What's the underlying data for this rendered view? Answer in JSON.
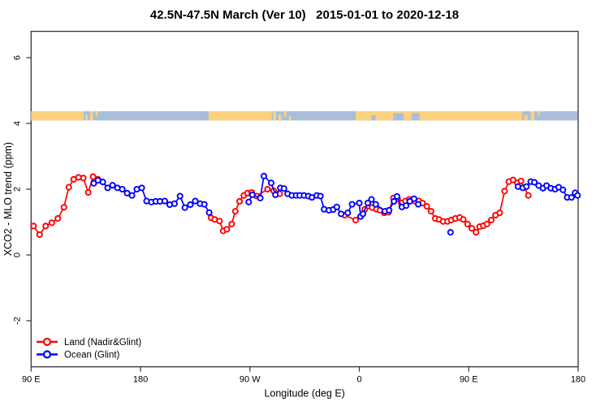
{
  "title": "42.5N-47.5N March (Ver 10)   2015-01-01 to 2020-12-18",
  "chart_data": {
    "type": "line",
    "title": "42.5N-47.5N March (Ver 10)   2015-01-01 to 2020-12-18",
    "xlabel": "Longitude (deg E)",
    "ylabel": "XCO2 - MLO trend (ppm)",
    "x_axis_note": "x is longitude in degrees east of 90E, wrapping 90E->180->90W->0->90E->180",
    "xlim": [
      0,
      450
    ],
    "ylim": [
      -3.4,
      6.8
    ],
    "grid": false,
    "x_ticks": [
      {
        "x": 0,
        "label": "90 E"
      },
      {
        "x": 90,
        "label": "180"
      },
      {
        "x": 180,
        "label": "90 W"
      },
      {
        "x": 270,
        "label": "0"
      },
      {
        "x": 360,
        "label": "90 E"
      },
      {
        "x": 450,
        "label": "180"
      }
    ],
    "y_ticks": [
      {
        "value": -2,
        "label": "-2"
      },
      {
        "value": 0,
        "label": "0"
      },
      {
        "value": 2,
        "label": "2"
      },
      {
        "value": 4,
        "label": "4"
      },
      {
        "value": 6,
        "label": "6"
      }
    ],
    "legend": {
      "position": "bottom-left",
      "entries": [
        {
          "label": "Land (Nadir&Glint)",
          "color": "#ff0000"
        },
        {
          "label": "Ocean (Glint)",
          "color": "#0000ff"
        }
      ]
    },
    "map_strip": {
      "description": "coastline band for 42.5N-47.5N drawn across the top of the plot",
      "y_top_value": 4.37,
      "y_bottom_value": 4.09,
      "ocean_color": "#a8bedb",
      "land_color": "#fbd27f",
      "extent": [
        0,
        449.5
      ],
      "land_segments": [
        [
          0,
          43.2
        ],
        [
          146,
          198
        ],
        [
          267,
          404
        ]
      ],
      "island_specks": [
        {
          "x": [
            44.5,
            46.5
          ],
          "h": 0.6,
          "anchor": "bottom"
        },
        {
          "x": [
            48.5,
            51.0
          ],
          "h": 1.0,
          "anchor": "top"
        },
        {
          "x": [
            53.0,
            55.0
          ],
          "h": 0.5,
          "anchor": "top"
        },
        {
          "x": [
            199.0,
            201.5
          ],
          "h": 1.0,
          "anchor": "top"
        },
        {
          "x": [
            203.5,
            206.0
          ],
          "h": 0.6,
          "anchor": "bottom"
        },
        {
          "x": [
            208.0,
            210.0
          ],
          "h": 0.6,
          "anchor": "top"
        },
        {
          "x": [
            212.0,
            214.0
          ],
          "h": 0.5,
          "anchor": "bottom"
        },
        {
          "x": [
            405.5,
            408.5
          ],
          "h": 0.6,
          "anchor": "bottom"
        },
        {
          "x": [
            411.0,
            414.0
          ],
          "h": 1.0,
          "anchor": "top"
        },
        {
          "x": [
            416.5,
            418.5
          ],
          "h": 0.4,
          "anchor": "top"
        }
      ],
      "ocean_patches": [
        {
          "x": [
            280.0,
            283.5
          ],
          "h": 0.55,
          "anchor": "bottom"
        },
        {
          "x": [
            298.0,
            306.5
          ],
          "h": 0.8,
          "anchor": "bottom"
        },
        {
          "x": [
            313.0,
            319.5
          ],
          "h": 0.8,
          "anchor": "bottom"
        }
      ]
    },
    "series": [
      {
        "name": "Land (Nadir&Glint)",
        "color": "#ff0000",
        "points": [
          [
            2,
            0.88
          ],
          [
            7,
            0.62
          ],
          [
            12,
            0.88
          ],
          [
            17,
            0.98
          ],
          [
            22,
            1.11
          ],
          [
            27,
            1.45
          ],
          [
            31,
            2.06
          ],
          [
            35,
            2.3
          ],
          [
            39,
            2.36
          ],
          [
            43,
            2.34
          ],
          [
            47,
            1.9
          ],
          [
            51,
            2.38
          ],
          [
            55,
            2.3
          ],
          [
            148,
            1.13
          ],
          [
            151,
            1.08
          ],
          [
            155,
            1.03
          ],
          [
            158,
            0.73
          ],
          [
            161,
            0.78
          ],
          [
            165,
            0.94
          ],
          [
            168,
            1.33
          ],
          [
            171.5,
            1.63
          ],
          [
            175,
            1.81
          ],
          [
            178,
            1.88
          ],
          [
            181.5,
            1.9
          ],
          [
            185.5,
            1.79
          ],
          [
            194.5,
            2.0
          ],
          [
            199.5,
            1.95
          ],
          [
            204.5,
            1.86
          ],
          [
            258,
            1.21
          ],
          [
            267,
            1.06
          ],
          [
            271,
            1.17
          ],
          [
            274.5,
            1.39
          ],
          [
            280.5,
            1.44
          ],
          [
            284,
            1.39
          ],
          [
            287,
            1.36
          ],
          [
            290.5,
            1.28
          ],
          [
            294,
            1.3
          ],
          [
            298,
            1.73
          ],
          [
            301.5,
            1.71
          ],
          [
            304.5,
            1.58
          ],
          [
            308,
            1.64
          ],
          [
            311,
            1.69
          ],
          [
            315.5,
            1.64
          ],
          [
            319,
            1.64
          ],
          [
            322,
            1.58
          ],
          [
            325.5,
            1.48
          ],
          [
            329,
            1.33
          ],
          [
            332.5,
            1.11
          ],
          [
            335.5,
            1.08
          ],
          [
            339,
            1.02
          ],
          [
            342.5,
            1.02
          ],
          [
            345.5,
            1.06
          ],
          [
            349,
            1.11
          ],
          [
            352.5,
            1.14
          ],
          [
            355.5,
            1.08
          ],
          [
            359,
            0.94
          ],
          [
            362.5,
            0.81
          ],
          [
            366,
            0.69
          ],
          [
            369,
            0.86
          ],
          [
            372,
            0.89
          ],
          [
            375,
            0.94
          ],
          [
            378.5,
            1.06
          ],
          [
            382,
            1.21
          ],
          [
            385.5,
            1.28
          ],
          [
            389.5,
            1.94
          ],
          [
            393,
            2.23
          ],
          [
            396.5,
            2.28
          ],
          [
            400,
            2.19
          ],
          [
            403,
            2.25
          ],
          [
            409,
            1.81
          ]
        ]
      },
      {
        "name": "Ocean (Glint)",
        "color": "#0000ff",
        "points": [
          [
            51.5,
            2.18
          ],
          [
            55,
            2.27
          ],
          [
            59,
            2.22
          ],
          [
            63,
            2.04
          ],
          [
            67,
            2.12
          ],
          [
            71,
            2.04
          ],
          [
            75,
            2.0
          ],
          [
            79,
            1.88
          ],
          [
            83,
            1.81
          ],
          [
            87,
            2.0
          ],
          [
            91,
            2.04
          ],
          [
            95,
            1.64
          ],
          [
            99,
            1.61
          ],
          [
            102.5,
            1.63
          ],
          [
            106,
            1.63
          ],
          [
            110,
            1.64
          ],
          [
            114,
            1.53
          ],
          [
            118,
            1.56
          ],
          [
            122.5,
            1.79
          ],
          [
            126.5,
            1.44
          ],
          [
            131,
            1.53
          ],
          [
            135,
            1.64
          ],
          [
            139,
            1.56
          ],
          [
            142.5,
            1.54
          ],
          [
            146.5,
            1.29
          ],
          [
            179,
            1.61
          ],
          [
            182,
            1.83
          ],
          [
            188.5,
            1.73
          ],
          [
            191.5,
            2.4
          ],
          [
            197.5,
            2.19
          ],
          [
            201,
            1.83
          ],
          [
            205,
            2.04
          ],
          [
            208,
            2.02
          ],
          [
            211,
            1.86
          ],
          [
            214.5,
            1.81
          ],
          [
            218,
            1.81
          ],
          [
            221,
            1.81
          ],
          [
            224.5,
            1.81
          ],
          [
            228,
            1.79
          ],
          [
            231,
            1.75
          ],
          [
            235,
            1.81
          ],
          [
            238,
            1.79
          ],
          [
            241,
            1.39
          ],
          [
            245,
            1.36
          ],
          [
            248.5,
            1.38
          ],
          [
            251.5,
            1.46
          ],
          [
            255,
            1.25
          ],
          [
            260.5,
            1.28
          ],
          [
            264,
            1.54
          ],
          [
            270,
            1.58
          ],
          [
            271,
            1.17
          ],
          [
            273,
            1.25
          ],
          [
            277,
            1.58
          ],
          [
            280,
            1.69
          ],
          [
            283.5,
            1.54
          ],
          [
            291,
            1.33
          ],
          [
            294.5,
            1.36
          ],
          [
            298.5,
            1.63
          ],
          [
            301,
            1.78
          ],
          [
            305,
            1.46
          ],
          [
            308.5,
            1.5
          ],
          [
            311.5,
            1.63
          ],
          [
            315,
            1.71
          ],
          [
            318.5,
            1.54
          ],
          [
            345,
            0.69
          ],
          [
            400.5,
            2.08
          ],
          [
            404.5,
            2.04
          ],
          [
            407.5,
            2.08
          ],
          [
            411,
            2.23
          ],
          [
            414,
            2.21
          ],
          [
            417.5,
            2.11
          ],
          [
            421,
            2.03
          ],
          [
            424,
            2.11
          ],
          [
            427.5,
            2.03
          ],
          [
            431,
            2.0
          ],
          [
            434,
            2.06
          ],
          [
            437.5,
            1.98
          ],
          [
            441,
            1.75
          ],
          [
            444.5,
            1.75
          ],
          [
            447.5,
            1.89
          ],
          [
            449.5,
            1.81
          ]
        ]
      }
    ]
  }
}
